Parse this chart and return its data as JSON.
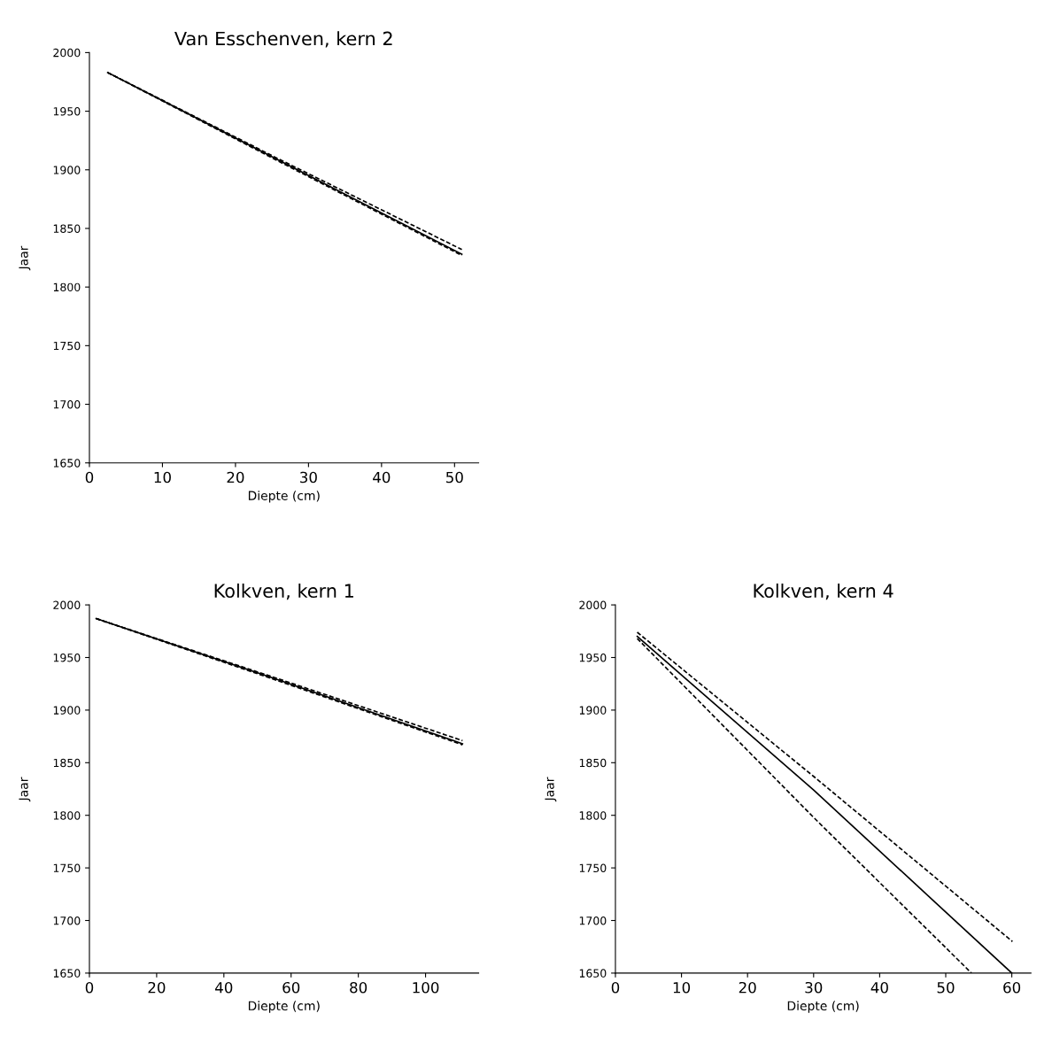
{
  "chart_data": [
    {
      "type": "line",
      "title": "Van Esschenven, kern 2",
      "xlabel": "Diepte (cm)",
      "ylabel": "Jaar",
      "xlim": [
        0,
        53.3
      ],
      "xticks": [
        0,
        10,
        20,
        30,
        40,
        50
      ],
      "ylim": [
        1650,
        2000
      ],
      "yticks": [
        1650,
        1700,
        1750,
        1800,
        1850,
        1900,
        1950,
        2000
      ],
      "grid": false,
      "series": [
        {
          "color": "#000000",
          "line_style": "solid",
          "x": [
            2.5,
            26,
            51
          ],
          "values": [
            1983,
            1908,
            1828
          ]
        },
        {
          "color": "#000000",
          "line_style": "dashed",
          "x": [
            2.5,
            26,
            51
          ],
          "values": [
            1983,
            1909,
            1832
          ]
        },
        {
          "color": "#000000",
          "line_style": "dashed",
          "x": [
            2.5,
            26,
            51
          ],
          "values": [
            1983,
            1907,
            1827
          ]
        }
      ]
    },
    {
      "type": "line",
      "title": "Kolkven, kern 1",
      "xlabel": "Diepte (cm)",
      "ylabel": "Jaar",
      "xlim": [
        0,
        115.8
      ],
      "xticks": [
        0,
        20,
        40,
        60,
        80,
        100
      ],
      "ylim": [
        1650,
        2000
      ],
      "yticks": [
        1650,
        1700,
        1750,
        1800,
        1850,
        1900,
        1950,
        2000
      ],
      "grid": false,
      "series": [
        {
          "color": "#000000",
          "line_style": "solid",
          "x": [
            2,
            56,
            111
          ],
          "values": [
            1987,
            1929,
            1868
          ]
        },
        {
          "color": "#000000",
          "line_style": "dashed",
          "x": [
            2,
            56,
            111
          ],
          "values": [
            1987,
            1930,
            1871
          ]
        },
        {
          "color": "#000000",
          "line_style": "dashed",
          "x": [
            2,
            56,
            111
          ],
          "values": [
            1987,
            1928,
            1867
          ]
        }
      ]
    },
    {
      "type": "line",
      "title": "Kolkven, kern 4",
      "xlabel": "Diepte (cm)",
      "ylabel": "Jaar",
      "xlim": [
        0,
        62.9
      ],
      "xticks": [
        0,
        10,
        20,
        30,
        40,
        50,
        60
      ],
      "ylim": [
        1650,
        2000
      ],
      "yticks": [
        1650,
        1700,
        1750,
        1800,
        1850,
        1900,
        1950,
        2000
      ],
      "grid": false,
      "series": [
        {
          "color": "#000000",
          "line_style": "solid",
          "x": [
            3.3,
            30,
            60
          ],
          "values": [
            1970,
            1824,
            1650
          ]
        },
        {
          "color": "#000000",
          "line_style": "dashed",
          "x": [
            3.3,
            30,
            60.1
          ],
          "values": [
            1974,
            1837,
            1680
          ]
        },
        {
          "color": "#000000",
          "line_style": "dashed",
          "x": [
            3.3,
            30,
            53.9
          ],
          "values": [
            1968,
            1798,
            1650
          ]
        }
      ]
    }
  ]
}
